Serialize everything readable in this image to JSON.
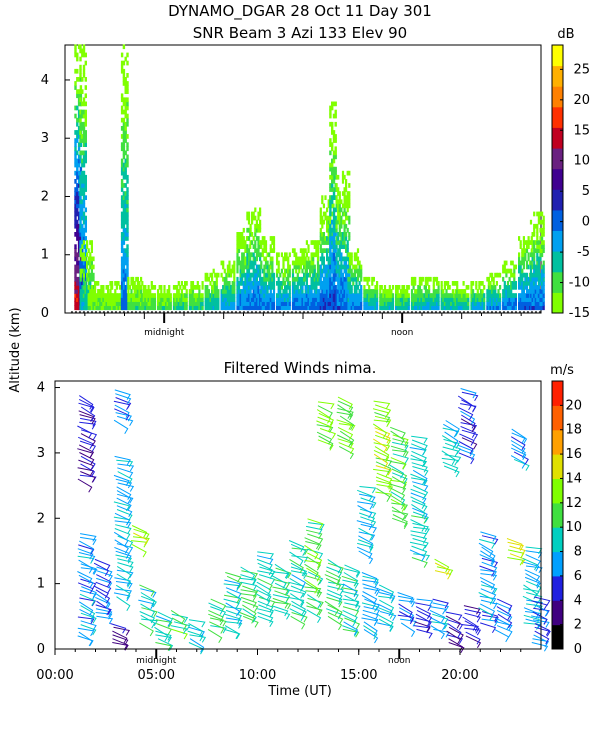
{
  "header": {
    "title_line1": "DYNAMO_DGAR  28 Oct 11 Day 301",
    "title_line2": "SNR Beam 3 Azi 133 Elev 90"
  },
  "colors": {
    "background": "#ffffff",
    "axis": "#000000"
  },
  "chart_data": [
    {
      "type": "heatmap",
      "title": "SNR Beam 3 Azi 133 Elev 90",
      "ylabel": "Altitude (km)",
      "ylim": [
        0,
        4.6
      ],
      "xlim": [
        0,
        24
      ],
      "y_ticks": [
        "0",
        "1",
        "2",
        "3",
        "4"
      ],
      "x_markers": [
        {
          "label": "midnight",
          "x": 5
        },
        {
          "label": "noon",
          "x": 17
        }
      ],
      "colorbar": {
        "unit": "dB",
        "range": [
          -15,
          29
        ],
        "tick_labels": [
          "25",
          "20",
          "15",
          "10",
          "5",
          "0",
          "-5",
          "-10",
          "-15"
        ],
        "tick_values": [
          25,
          20,
          15,
          10,
          5,
          0,
          -5,
          -10,
          -15
        ],
        "colors": [
          "#80ff00",
          "#40e040",
          "#00c0a0",
          "#00a0f0",
          "#0060e0",
          "#2020b0",
          "#400090",
          "#6a2080",
          "#c00020",
          "#ff3000",
          "#ff8000",
          "#ffb000",
          "#ffff00"
        ]
      },
      "columns": [
        {
          "x": 0.65,
          "top": 4.55,
          "peak": 18
        },
        {
          "x": 0.9,
          "top": 4.55,
          "peak": 5
        },
        {
          "x": 1.1,
          "top": 1.2,
          "peak": -2
        },
        {
          "x": 1.5,
          "top": 0.5,
          "peak": -8
        },
        {
          "x": 2.0,
          "top": 0.45,
          "peak": -8
        },
        {
          "x": 2.6,
          "top": 0.5,
          "peak": -8
        },
        {
          "x": 3.0,
          "top": 4.55,
          "peak": 2
        },
        {
          "x": 3.5,
          "top": 0.6,
          "peak": -6
        },
        {
          "x": 4.2,
          "top": 0.5,
          "peak": -6
        },
        {
          "x": 5.0,
          "top": 0.45,
          "peak": -6
        },
        {
          "x": 5.8,
          "top": 0.5,
          "peak": -5
        },
        {
          "x": 6.6,
          "top": 0.55,
          "peak": -4
        },
        {
          "x": 7.4,
          "top": 0.7,
          "peak": -2
        },
        {
          "x": 8.2,
          "top": 0.9,
          "peak": 0
        },
        {
          "x": 9.0,
          "top": 1.4,
          "peak": 2
        },
        {
          "x": 9.5,
          "top": 1.8,
          "peak": 3
        },
        {
          "x": 10.2,
          "top": 1.3,
          "peak": 2
        },
        {
          "x": 11.0,
          "top": 1.0,
          "peak": 2
        },
        {
          "x": 11.8,
          "top": 1.1,
          "peak": 3
        },
        {
          "x": 12.5,
          "top": 1.2,
          "peak": 3
        },
        {
          "x": 13.2,
          "top": 2.0,
          "peak": 4
        },
        {
          "x": 13.5,
          "top": 3.6,
          "peak": 4
        },
        {
          "x": 14.0,
          "top": 2.4,
          "peak": 3
        },
        {
          "x": 14.6,
          "top": 1.1,
          "peak": 2
        },
        {
          "x": 15.4,
          "top": 0.6,
          "peak": 0
        },
        {
          "x": 16.2,
          "top": 0.45,
          "peak": -2
        },
        {
          "x": 17.0,
          "top": 0.45,
          "peak": -2
        },
        {
          "x": 17.8,
          "top": 0.6,
          "peak": -2
        },
        {
          "x": 18.5,
          "top": 0.6,
          "peak": 0
        },
        {
          "x": 19.3,
          "top": 0.55,
          "peak": -2
        },
        {
          "x": 20.0,
          "top": 0.5,
          "peak": -2
        },
        {
          "x": 20.8,
          "top": 0.55,
          "peak": 0
        },
        {
          "x": 21.6,
          "top": 0.65,
          "peak": 2
        },
        {
          "x": 22.4,
          "top": 0.9,
          "peak": 3
        },
        {
          "x": 23.2,
          "top": 1.3,
          "peak": 4
        },
        {
          "x": 23.8,
          "top": 1.7,
          "peak": 3
        }
      ]
    },
    {
      "type": "scatter",
      "title": "Filtered Winds nima.",
      "xlabel": "Time (UT)",
      "ylabel": "Altitude (km)",
      "xlim": [
        0,
        24
      ],
      "ylim": [
        0,
        4.1
      ],
      "x_tick_labels": [
        "00:00",
        "05:00",
        "10:00",
        "15:00",
        "20:00"
      ],
      "x_tick_values": [
        0,
        5,
        10,
        15,
        20
      ],
      "y_ticks": [
        "0",
        "1",
        "2",
        "3",
        "4"
      ],
      "x_markers": [
        {
          "label": "midnight",
          "x": 5
        },
        {
          "label": "noon",
          "x": 17
        }
      ],
      "colorbar": {
        "unit": "m/s",
        "range": [
          0,
          22
        ],
        "tick_labels": [
          "20",
          "18",
          "16",
          "14",
          "12",
          "10",
          "8",
          "6",
          "4",
          "2",
          "0"
        ],
        "tick_values": [
          20,
          18,
          16,
          14,
          12,
          10,
          8,
          6,
          4,
          2,
          0
        ],
        "colors": [
          "#000000",
          "#400080",
          "#2020e0",
          "#00a0ff",
          "#00d0c0",
          "#40e040",
          "#80ff00",
          "#e0e000",
          "#ffa000",
          "#ff6000",
          "#ff2000"
        ]
      },
      "wind_groups": [
        {
          "x": 1.2,
          "z0": 0.2,
          "z1": 1.8,
          "speed": 7
        },
        {
          "x": 1.2,
          "z0": 2.6,
          "z1": 3.9,
          "speed": 4
        },
        {
          "x": 2.0,
          "z0": 0.5,
          "z1": 1.4,
          "speed": 6
        },
        {
          "x": 2.8,
          "z0": 0.1,
          "z1": 0.4,
          "speed": 3
        },
        {
          "x": 3.0,
          "z0": 0.8,
          "z1": 3.0,
          "speed": 8
        },
        {
          "x": 3.0,
          "z0": 3.5,
          "z1": 4.0,
          "speed": 6
        },
        {
          "x": 3.8,
          "z0": 1.6,
          "z1": 1.9,
          "speed": 14
        },
        {
          "x": 4.2,
          "z0": 0.4,
          "z1": 1.0,
          "speed": 9
        },
        {
          "x": 5.0,
          "z0": 0.1,
          "z1": 0.6,
          "speed": 9
        },
        {
          "x": 5.8,
          "z0": 0.3,
          "z1": 0.6,
          "speed": 11
        },
        {
          "x": 6.6,
          "z0": 0.1,
          "z1": 0.5,
          "speed": 8
        },
        {
          "x": 7.6,
          "z0": 0.3,
          "z1": 0.8,
          "speed": 10
        },
        {
          "x": 8.4,
          "z0": 0.3,
          "z1": 1.2,
          "speed": 9
        },
        {
          "x": 9.2,
          "z0": 0.5,
          "z1": 1.3,
          "speed": 10
        },
        {
          "x": 10.0,
          "z0": 0.5,
          "z1": 1.5,
          "speed": 9
        },
        {
          "x": 10.8,
          "z0": 0.6,
          "z1": 1.3,
          "speed": 10
        },
        {
          "x": 11.6,
          "z0": 0.5,
          "z1": 1.7,
          "speed": 9
        },
        {
          "x": 12.4,
          "z0": 0.6,
          "z1": 2.0,
          "speed": 11
        },
        {
          "x": 13.0,
          "z0": 3.2,
          "z1": 3.8,
          "speed": 12
        },
        {
          "x": 13.4,
          "z0": 0.5,
          "z1": 1.4,
          "speed": 10
        },
        {
          "x": 14.0,
          "z0": 3.1,
          "z1": 3.9,
          "speed": 12
        },
        {
          "x": 14.2,
          "z0": 0.3,
          "z1": 1.3,
          "speed": 9
        },
        {
          "x": 15.0,
          "z0": 1.5,
          "z1": 2.5,
          "speed": 8
        },
        {
          "x": 15.2,
          "z0": 0.3,
          "z1": 1.2,
          "speed": 7
        },
        {
          "x": 15.8,
          "z0": 2.4,
          "z1": 3.8,
          "speed": 13
        },
        {
          "x": 16.0,
          "z0": 0.4,
          "z1": 1.0,
          "speed": 8
        },
        {
          "x": 16.6,
          "z0": 2.0,
          "z1": 3.4,
          "speed": 11
        },
        {
          "x": 17.0,
          "z0": 0.4,
          "z1": 0.9,
          "speed": 6
        },
        {
          "x": 17.6,
          "z0": 1.4,
          "z1": 3.3,
          "speed": 9
        },
        {
          "x": 17.8,
          "z0": 0.3,
          "z1": 0.8,
          "speed": 5
        },
        {
          "x": 18.6,
          "z0": 0.3,
          "z1": 0.8,
          "speed": 7
        },
        {
          "x": 18.8,
          "z0": 1.2,
          "z1": 1.4,
          "speed": 14
        },
        {
          "x": 19.2,
          "z0": 2.8,
          "z1": 3.5,
          "speed": 8
        },
        {
          "x": 19.4,
          "z0": 0.1,
          "z1": 0.6,
          "speed": 4
        },
        {
          "x": 20.0,
          "z0": 3.0,
          "z1": 4.0,
          "speed": 5
        },
        {
          "x": 20.2,
          "z0": 0.2,
          "z1": 0.7,
          "speed": 4
        },
        {
          "x": 21.0,
          "z0": 0.4,
          "z1": 1.8,
          "speed": 7
        },
        {
          "x": 21.8,
          "z0": 0.3,
          "z1": 0.8,
          "speed": 6
        },
        {
          "x": 22.4,
          "z0": 1.4,
          "z1": 1.7,
          "speed": 14
        },
        {
          "x": 22.6,
          "z0": 2.9,
          "z1": 3.4,
          "speed": 7
        },
        {
          "x": 23.2,
          "z0": 0.4,
          "z1": 1.6,
          "speed": 8
        },
        {
          "x": 23.6,
          "z0": 0.1,
          "z1": 0.8,
          "speed": 6
        }
      ]
    }
  ]
}
